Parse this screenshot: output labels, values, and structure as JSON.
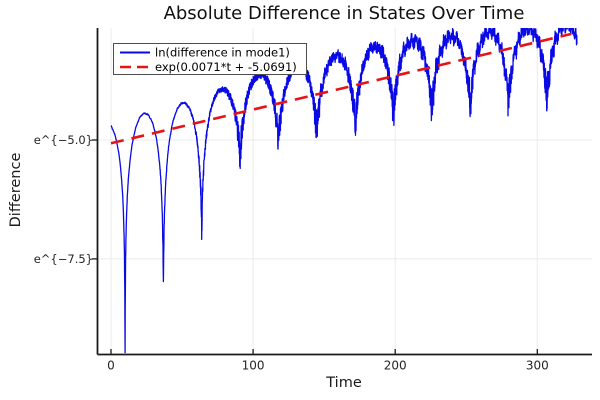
{
  "chart_data": {
    "type": "line",
    "title": "Absolute Difference in States Over Time",
    "xlabel": "Time",
    "ylabel": "Difference",
    "x_range": [
      -9.5,
      338.5
    ],
    "y_range_ln": [
      -9.51,
      -2.645
    ],
    "x_ticks": [
      {
        "value": 0,
        "label": "0"
      },
      {
        "value": 100,
        "label": "100"
      },
      {
        "value": 200,
        "label": "200"
      },
      {
        "value": 300,
        "label": "300"
      }
    ],
    "y_ticks": [
      {
        "value": -5.0,
        "label": "e^{−5.0}"
      },
      {
        "value": -7.5,
        "label": "e^{−7.5}"
      }
    ],
    "grid": true,
    "legend": {
      "position": "top-left",
      "background": "#ffffff",
      "border_color": "#4d4d4d"
    },
    "axis_color": "#1a1a1a",
    "grid_color": "#ebebeb",
    "series": [
      {
        "name": "ln(difference in mode1)",
        "color": "#0a0ae6",
        "line_style": "solid",
        "line_width": 1.3,
        "model": {
          "type": "log_abs_damped_cosine_with_noise",
          "growth_slope": 0.0071,
          "log_intercept": -5.0691,
          "peak_offset": 0.45,
          "peak_offset_decay": 0.004,
          "peak_offset_decay_start": 200,
          "omega": 0.1164,
          "phase": 0.42,
          "noise_floor0": 0.003,
          "noise_tau": 20,
          "noise_cap": 0.3,
          "jitter_base": 0.015,
          "jitter_amp": 0.115,
          "jitter_onset": 115,
          "jitter_ramp": 110,
          "t_start": 0,
          "t_end": 328,
          "dt": 0.1
        },
        "observed_dips_t_ln": [
          [
            11,
            -9.4
          ],
          [
            35,
            -8.7
          ],
          [
            61,
            -6.4
          ],
          [
            89,
            -5.6
          ],
          [
            117,
            -5.1
          ],
          [
            144,
            -4.7
          ],
          [
            172,
            -4.3
          ],
          [
            200,
            -4.1
          ],
          [
            229,
            -3.9
          ],
          [
            257,
            -3.9
          ],
          [
            285,
            -3.6
          ],
          [
            313,
            -3.3
          ]
        ],
        "observed_peaks_t_ln": [
          [
            25,
            -4.54
          ],
          [
            55,
            -4.22
          ],
          [
            82,
            -4.0
          ],
          [
            110,
            -3.8
          ],
          [
            160,
            -3.49
          ],
          [
            212,
            -3.21
          ],
          [
            240,
            -3.1
          ],
          [
            270,
            -3.0
          ],
          [
            298,
            -2.9
          ],
          [
            321,
            -2.83
          ]
        ]
      },
      {
        "name": "exp(0.0071*t + -5.0691)",
        "color": "#e61414",
        "line_style": "dashed",
        "line_width": 2.6,
        "model": {
          "type": "exponential_fit",
          "slope": 0.0071,
          "intercept": -5.0691,
          "t_start": 0,
          "t_end": 324
        }
      }
    ]
  }
}
